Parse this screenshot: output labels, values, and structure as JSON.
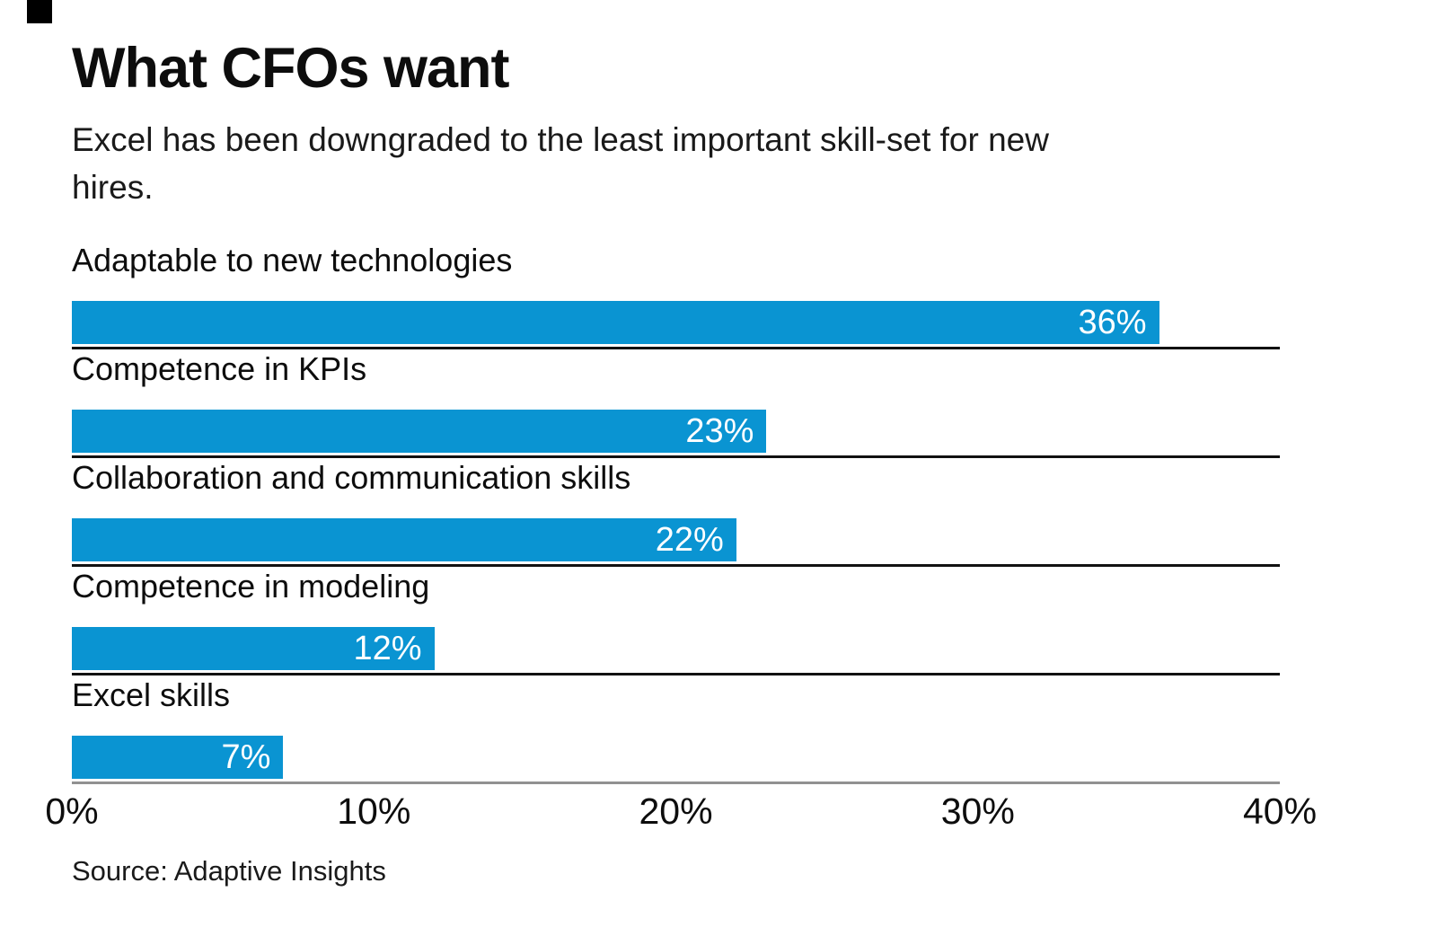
{
  "brand": {
    "square_color": "#000000"
  },
  "header": {
    "title": "What CFOs want",
    "subtitle": "Excel has been downgraded to the least important skill-set for new hires."
  },
  "chart_data": {
    "type": "bar",
    "orientation": "horizontal",
    "title": "What CFOs want",
    "subtitle": "Excel has been downgraded to the least important skill-set for new hires.",
    "categories": [
      "Adaptable to new technologies",
      "Competence in KPIs",
      "Collaboration and communication skills",
      "Competence in modeling",
      "Excel skills"
    ],
    "values": [
      36,
      23,
      22,
      12,
      7
    ],
    "value_labels": [
      "36%",
      "23%",
      "22%",
      "12%",
      "7%"
    ],
    "xlabel": "",
    "ylabel": "",
    "xlim": [
      0,
      40
    ],
    "x_tick_values": [
      0,
      10,
      20,
      30,
      40
    ],
    "x_tick_labels": [
      "0%",
      "10%",
      "20%",
      "30%",
      "40%"
    ],
    "grid": false,
    "legend": false,
    "bar_color": "#0A94D2",
    "value_label_color": "#FFFFFF",
    "row_divider_color": "#111111",
    "axis_line_color": "#919191"
  },
  "footer": {
    "source": "Source: Adaptive Insights"
  }
}
